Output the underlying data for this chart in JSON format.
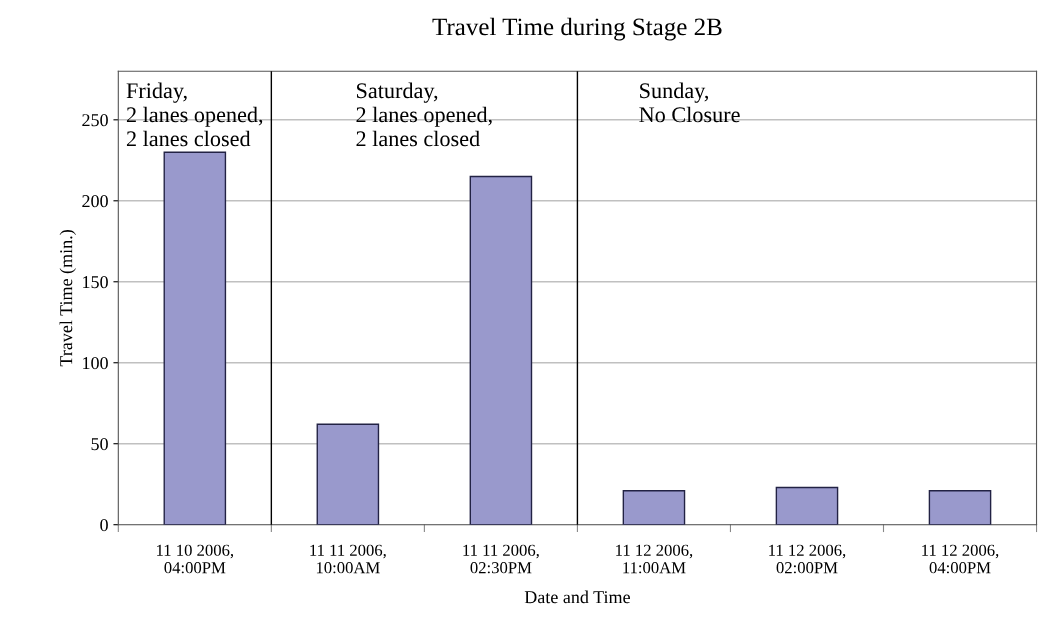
{
  "chart_data": {
    "type": "bar",
    "title": "Travel Time during Stage 2B",
    "xlabel": "Date and Time",
    "ylabel": "Travel Time (min.)",
    "categories": [
      "11 10 2006,\n04:00PM",
      "11 11 2006,\n10:00AM",
      "11 11 2006,\n02:30PM",
      "11 12 2006,\n11:00AM",
      "11 12 2006,\n02:00PM",
      "11 12 2006,\n04:00PM"
    ],
    "values": [
      230,
      62,
      215,
      21,
      23,
      21
    ],
    "color": "#9999cc",
    "ylim": [
      0,
      280
    ],
    "yticks": [
      0,
      50,
      100,
      150,
      200,
      250
    ],
    "grid": "y",
    "annotations": [
      "Friday,\n2 lanes opened,\n2 lanes closed",
      "Saturday,\n2 lanes opened,\n2 lanes closed",
      "Sunday,\nNo Closure"
    ]
  }
}
